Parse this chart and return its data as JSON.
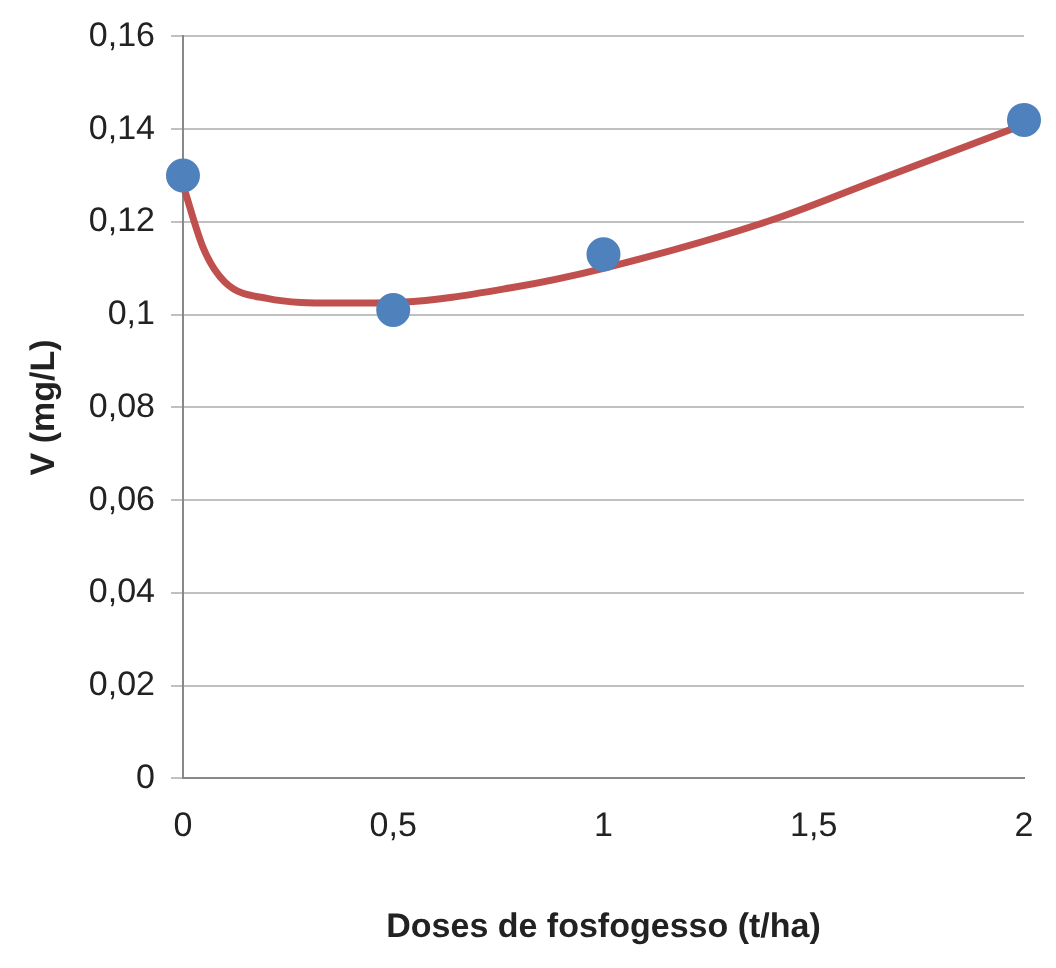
{
  "chart_data": {
    "type": "scatter",
    "xlabel": "Doses de fosfogesso (t/ha)",
    "ylabel": "V (mg/L)",
    "x": [
      0,
      0.5,
      1,
      2
    ],
    "series": [
      {
        "color": "#4f81bd",
        "values": [
          0.13,
          0.101,
          0.113,
          0.142
        ],
        "marker": "circle"
      },
      {
        "type": "line",
        "color": "#c0504d",
        "x": [
          0,
          0.05,
          0.1,
          0.2,
          0.36,
          0.52,
          0.78,
          1,
          1.4,
          1.65,
          2
        ],
        "values": [
          0.128,
          0.114,
          0.107,
          0.1035,
          0.1025,
          0.1027,
          0.1058,
          0.11,
          0.1204,
          0.129,
          0.141
        ],
        "marker": "none",
        "line_style": "solid"
      }
    ],
    "xlim": [
      0,
      2
    ],
    "xticks": [
      0,
      {
        "value": 0.5,
        "label": "0,5"
      },
      1,
      {
        "value": 1.5,
        "label": "1,5"
      },
      2
    ],
    "ylim": [
      0,
      0.16
    ],
    "yticks": [
      0,
      {
        "value": 0.02,
        "label": "0,02"
      },
      {
        "value": 0.04,
        "label": "0,04"
      },
      {
        "value": 0.06,
        "label": "0,06"
      },
      {
        "value": 0.08,
        "label": "0,08"
      },
      {
        "value": 0.1,
        "label": "0,1"
      },
      {
        "value": 0.12,
        "label": "0,12"
      },
      {
        "value": 0.14,
        "label": "0,14"
      },
      {
        "value": 0.16,
        "label": "0,16"
      }
    ],
    "grid": "y",
    "legend": false
  }
}
